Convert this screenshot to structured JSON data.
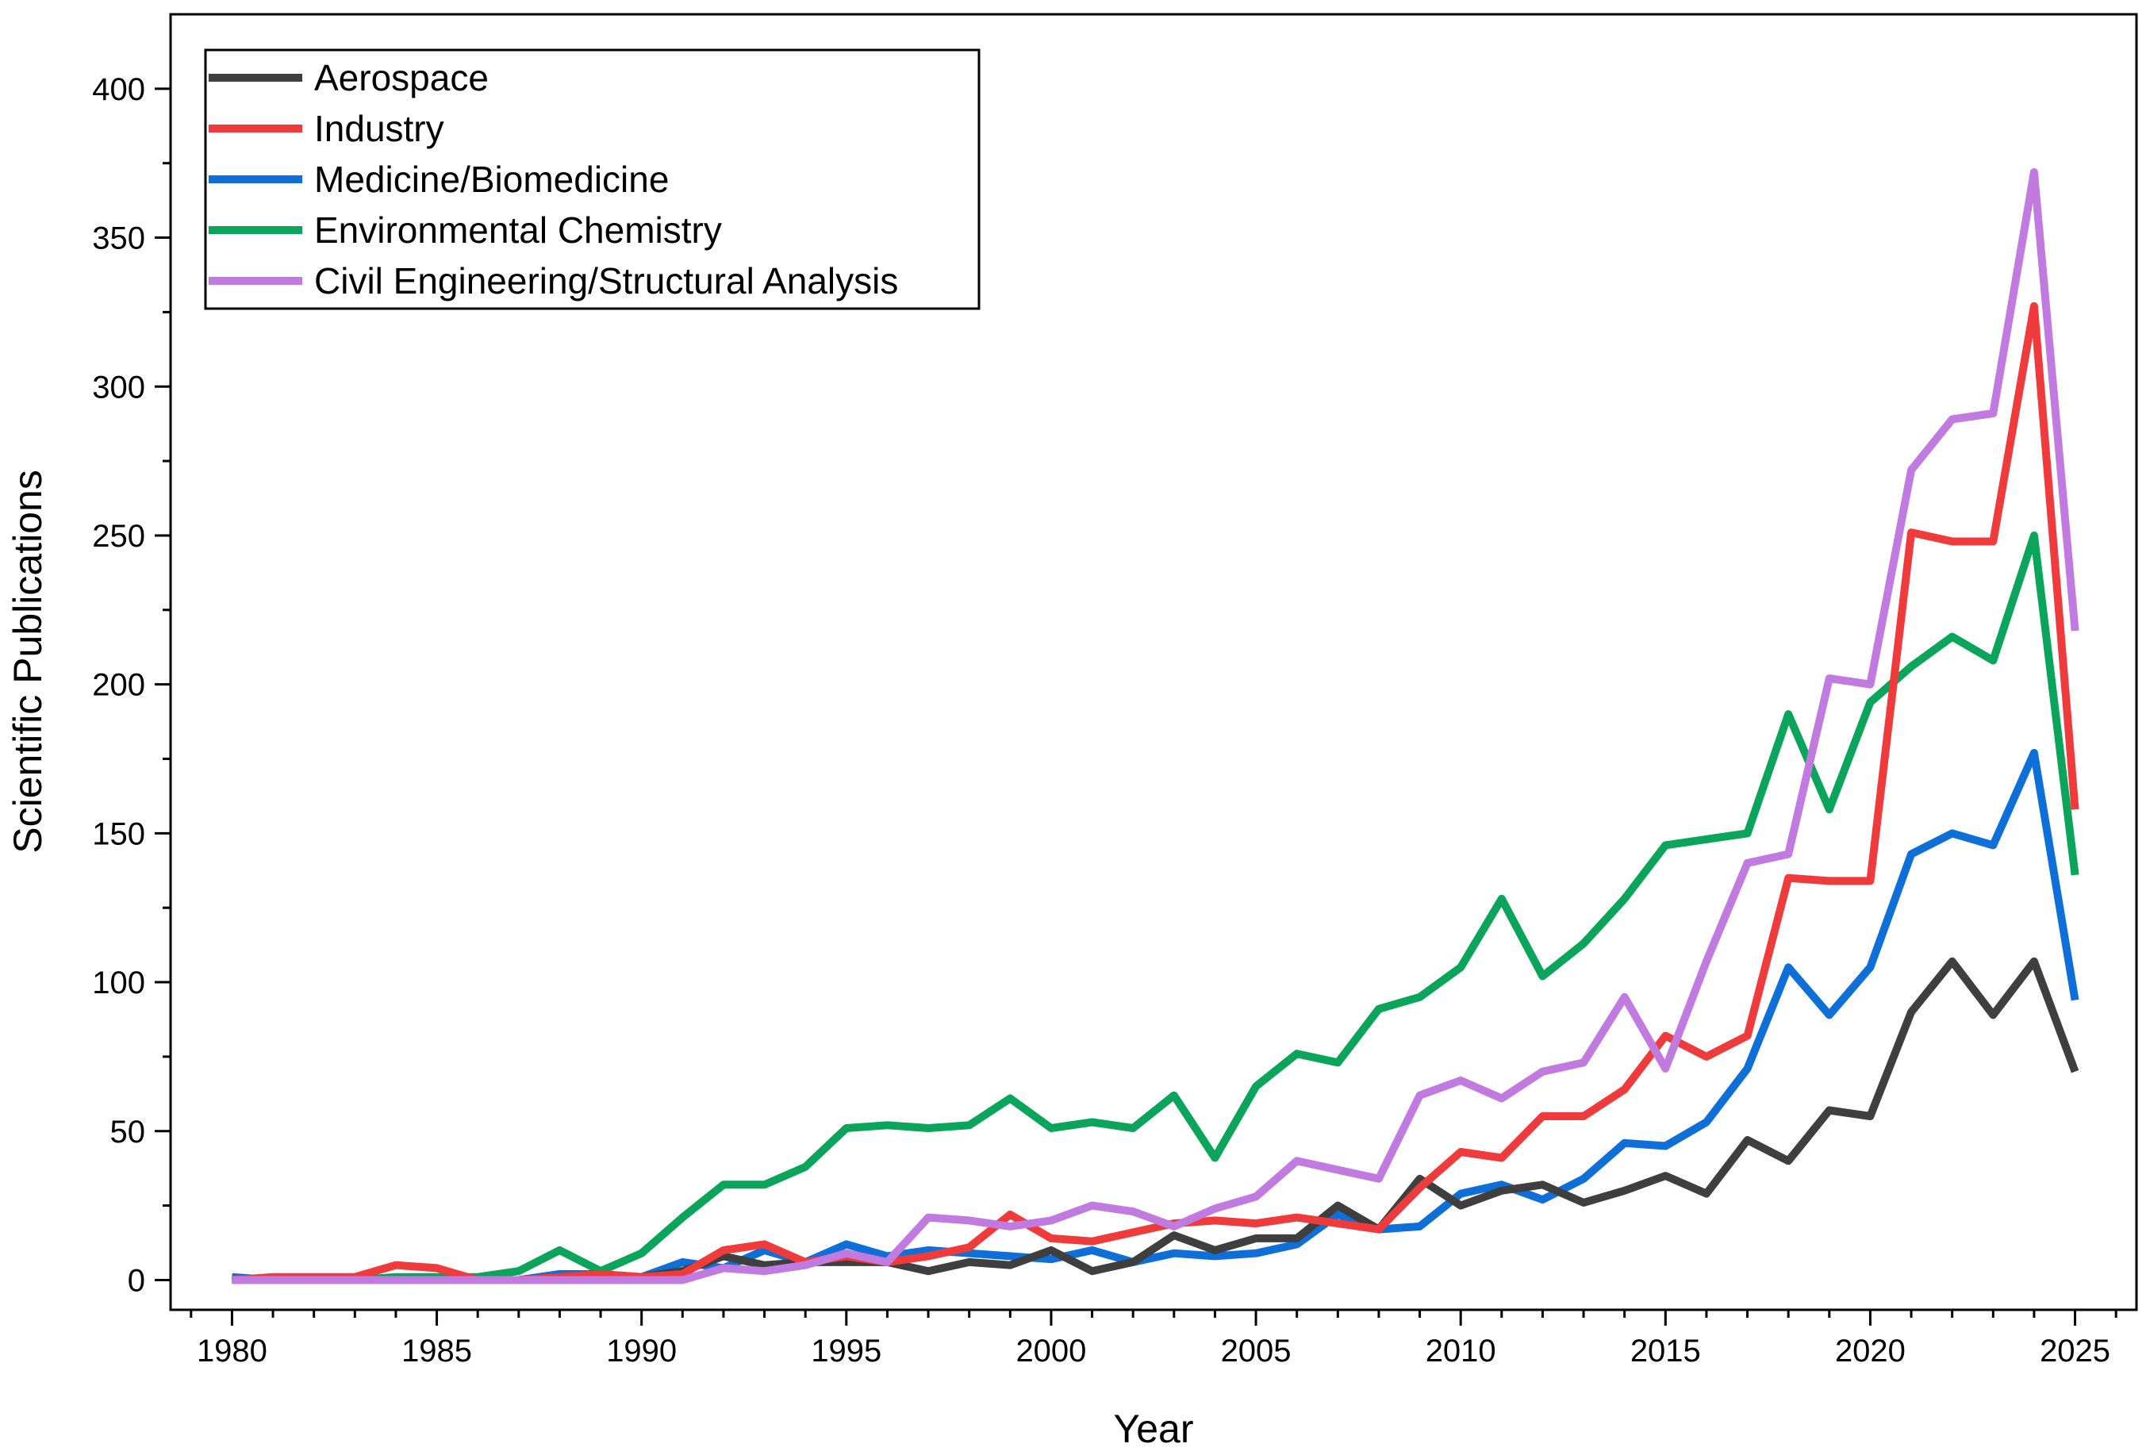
{
  "chart_data": {
    "type": "line",
    "title": "",
    "xlabel": "Year",
    "ylabel": "Scientific Publications",
    "xlim": [
      1978.5,
      2026.5
    ],
    "ylim": [
      -10,
      425
    ],
    "x_ticks": [
      1980,
      1985,
      1990,
      1995,
      2000,
      2005,
      2010,
      2015,
      2020,
      2025
    ],
    "y_ticks": [
      0,
      50,
      100,
      150,
      200,
      250,
      300,
      350,
      400
    ],
    "x_tick_labels": [
      "1980",
      "1985",
      "1990",
      "1995",
      "2000",
      "2005",
      "2010",
      "2015",
      "2020",
      "2025"
    ],
    "y_tick_labels": [
      "0",
      "50",
      "100",
      "150",
      "200",
      "250",
      "300",
      "350",
      "400"
    ],
    "legend_position": "top-left",
    "x": [
      1980,
      1981,
      1982,
      1983,
      1984,
      1985,
      1986,
      1987,
      1988,
      1989,
      1990,
      1991,
      1992,
      1993,
      1994,
      1995,
      1996,
      1997,
      1998,
      1999,
      2000,
      2001,
      2002,
      2003,
      2004,
      2005,
      2006,
      2007,
      2008,
      2009,
      2010,
      2011,
      2012,
      2013,
      2014,
      2015,
      2016,
      2017,
      2018,
      2019,
      2020,
      2021,
      2022,
      2023,
      2024,
      2025
    ],
    "series": [
      {
        "name": "Environmental Chemistry",
        "color": "#0aa45a",
        "values": [
          0,
          0,
          0,
          0,
          1,
          1,
          1,
          3,
          10,
          3,
          9,
          21,
          32,
          32,
          38,
          51,
          52,
          51,
          52,
          61,
          51,
          53,
          51,
          62,
          41,
          65,
          76,
          73,
          91,
          95,
          105,
          128,
          102,
          113,
          128,
          146,
          148,
          150,
          190,
          158,
          194,
          206,
          216,
          208,
          250,
          136
        ]
      },
      {
        "name": "Medicine/Biomedicine",
        "color": "#0f6fd9",
        "values": [
          1,
          0,
          0,
          0,
          0,
          0,
          0,
          0,
          2,
          2,
          1,
          6,
          4,
          10,
          6,
          12,
          8,
          10,
          9,
          8,
          7,
          10,
          6,
          9,
          8,
          9,
          12,
          22,
          17,
          18,
          29,
          32,
          27,
          34,
          46,
          45,
          53,
          71,
          105,
          89,
          105,
          143,
          150,
          146,
          177,
          94
        ]
      },
      {
        "name": "Aerospace",
        "color": "#3f3f3f",
        "values": [
          0,
          0,
          0,
          0,
          0,
          0,
          0,
          0,
          1,
          1,
          1,
          3,
          8,
          5,
          6,
          6,
          6,
          3,
          6,
          5,
          10,
          3,
          6,
          15,
          10,
          14,
          14,
          25,
          17,
          34,
          25,
          30,
          32,
          26,
          30,
          35,
          29,
          47,
          40,
          57,
          55,
          90,
          107,
          89,
          107,
          70
        ]
      },
      {
        "name": "Industry",
        "color": "#ef3b3b",
        "values": [
          0,
          1,
          1,
          1,
          5,
          4,
          0,
          0,
          1,
          2,
          1,
          2,
          10,
          12,
          6,
          8,
          6,
          8,
          11,
          22,
          14,
          13,
          16,
          19,
          20,
          19,
          21,
          19,
          17,
          31,
          43,
          41,
          55,
          55,
          64,
          82,
          75,
          82,
          135,
          134,
          134,
          251,
          248,
          248,
          327,
          158
        ]
      },
      {
        "name": "Civil Engineering/Structural Analysis",
        "color": "#c07ae0",
        "values": [
          0,
          0,
          0,
          0,
          0,
          0,
          0,
          0,
          0,
          0,
          0,
          0,
          4,
          3,
          5,
          9,
          6,
          21,
          20,
          18,
          20,
          25,
          23,
          18,
          24,
          28,
          40,
          37,
          34,
          62,
          67,
          61,
          70,
          73,
          95,
          71,
          107,
          140,
          143,
          202,
          200,
          272,
          289,
          291,
          372,
          218
        ]
      }
    ],
    "legend_order": [
      "Aerospace",
      "Industry",
      "Medicine/Biomedicine",
      "Environmental Chemistry",
      "Civil Engineering/Structural Analysis"
    ]
  }
}
